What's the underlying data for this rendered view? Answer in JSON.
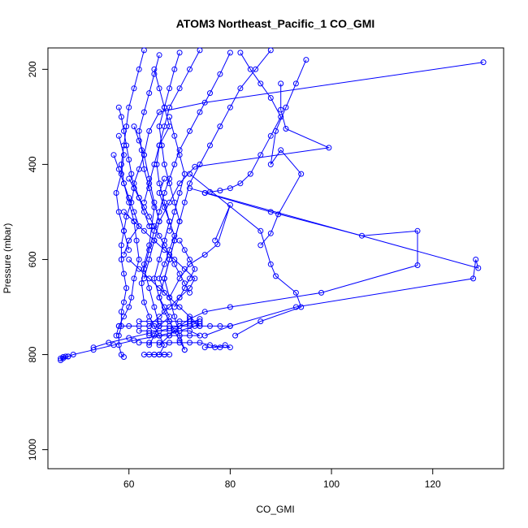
{
  "chart_data": {
    "type": "line",
    "title": "ATOM3 Northeast_Pacific_1 CO_GMI",
    "xlabel": "CO_GMI",
    "ylabel": "Pressure (mbar)",
    "xlim": [
      44,
      134
    ],
    "ylim": [
      1040,
      155
    ],
    "y_reversed": true,
    "x_ticks": [
      60,
      80,
      100,
      120
    ],
    "y_ticks": [
      200,
      400,
      600,
      800,
      1000
    ],
    "grid": false,
    "legend": "none",
    "color": "#0000ff",
    "series": [
      {
        "x": [
          58,
          58.5,
          59,
          59.5,
          60,
          60.5,
          61,
          60.5,
          59.5,
          59,
          58.5,
          58.5,
          59,
          59.5,
          59,
          58.5,
          58.5,
          58,
          58,
          58.5,
          59
        ],
        "y": [
          280,
          300,
          330,
          360,
          390,
          420,
          450,
          480,
          510,
          540,
          570,
          600,
          630,
          660,
          690,
          710,
          740,
          760,
          780,
          800,
          805
        ]
      },
      {
        "x": [
          63,
          62,
          61,
          60,
          59.5,
          59,
          58.5,
          59,
          60,
          61,
          61.5,
          62,
          61,
          60.5,
          60,
          59,
          58,
          57.5
        ],
        "y": [
          160,
          200,
          240,
          280,
          320,
          360,
          400,
          440,
          480,
          520,
          560,
          600,
          640,
          680,
          700,
          720,
          740,
          760
        ]
      },
      {
        "x": [
          66,
          65,
          64,
          63,
          62,
          62.5,
          63,
          64,
          65,
          64.5,
          64,
          63,
          62.5,
          63,
          64,
          65,
          66,
          67,
          66
        ],
        "y": [
          170,
          210,
          250,
          290,
          330,
          370,
          410,
          450,
          490,
          530,
          570,
          610,
          650,
          690,
          720,
          740,
          760,
          780,
          800
        ]
      },
      {
        "x": [
          70,
          69,
          68,
          67,
          66,
          66.5,
          67,
          68,
          69,
          70,
          69,
          68,
          67,
          66,
          67,
          68,
          69,
          70,
          71
        ],
        "y": [
          165,
          200,
          240,
          280,
          320,
          360,
          400,
          440,
          480,
          520,
          560,
          600,
          640,
          680,
          710,
          730,
          750,
          770,
          790
        ]
      },
      {
        "x": [
          74,
          72,
          70,
          68,
          67,
          66,
          65.5,
          66,
          67,
          68,
          67,
          66,
          65,
          66,
          67,
          68,
          66,
          65,
          64
        ],
        "y": [
          160,
          200,
          240,
          280,
          320,
          360,
          400,
          440,
          480,
          520,
          560,
          600,
          640,
          680,
          700,
          720,
          740,
          760,
          780
        ]
      },
      {
        "x": [
          80,
          78,
          76,
          74,
          72,
          70,
          69,
          68,
          67,
          66,
          65,
          64,
          63,
          64,
          65,
          66
        ],
        "y": [
          165,
          210,
          250,
          290,
          330,
          370,
          400,
          430,
          460,
          500,
          540,
          580,
          620,
          660,
          700,
          740
        ]
      },
      {
        "x": [
          88,
          85,
          82,
          80,
          78,
          76,
          74,
          72,
          71,
          70,
          69,
          68,
          67,
          68,
          69,
          70,
          71
        ],
        "y": [
          160,
          200,
          240,
          280,
          320,
          360,
          400,
          440,
          480,
          520,
          560,
          600,
          640,
          680,
          720,
          760,
          790
        ]
      },
      {
        "x": [
          130,
          75,
          66,
          64,
          63,
          64,
          65,
          66,
          65,
          64,
          63
        ],
        "y": [
          185,
          270,
          290,
          330,
          380,
          430,
          480,
          520,
          560,
          600,
          640
        ]
      },
      {
        "x": [
          90,
          90,
          91,
          99.5,
          73,
          70,
          68,
          66
        ],
        "y": [
          230,
          285,
          325,
          365,
          405,
          440,
          480,
          520
        ]
      },
      {
        "x": [
          95,
          93,
          91,
          89,
          88,
          90,
          94,
          89.5,
          88,
          86
        ],
        "y": [
          180,
          230,
          280,
          330,
          400,
          370,
          420,
          505,
          545,
          570
        ]
      },
      {
        "x": [
          82,
          84,
          86,
          88,
          90,
          88,
          86,
          84,
          82,
          80,
          78,
          76,
          75
        ],
        "y": [
          165,
          200,
          230,
          260,
          300,
          340,
          380,
          420,
          440,
          450,
          455,
          458,
          460
        ]
      },
      {
        "x": [
          75,
          88,
          106,
          117,
          117,
          98,
          80,
          75,
          72,
          70,
          68,
          66
        ],
        "y": [
          460,
          500,
          550,
          540,
          612,
          670,
          700,
          710,
          725,
          740,
          760,
          780
        ]
      },
      {
        "x": [
          72,
          129,
          128.5,
          128,
          93,
          80,
          75
        ],
        "y": [
          450,
          618,
          600,
          640,
          700,
          740,
          760
        ]
      },
      {
        "x": [
          72,
          86,
          88,
          89,
          93,
          94,
          86,
          81
        ],
        "y": [
          420,
          540,
          610,
          635,
          670,
          700,
          730,
          760
        ]
      },
      {
        "x": [
          77,
          80,
          77.5,
          75,
          72,
          70,
          68
        ],
        "y": [
          560,
          485,
          568,
          590,
          610,
          640,
          680
        ]
      },
      {
        "x": [
          60,
          62,
          64,
          66,
          68,
          70,
          72,
          74
        ],
        "y": [
          600,
          620,
          640,
          660,
          680,
          700,
          720,
          740
        ]
      },
      {
        "x": [
          59,
          61,
          63,
          65,
          67,
          69,
          71,
          73,
          72,
          70,
          68,
          66,
          64
        ],
        "y": [
          500,
          520,
          540,
          560,
          580,
          600,
          620,
          640,
          660,
          680,
          700,
          720,
          740
        ]
      },
      {
        "x": [
          58,
          60,
          62,
          64,
          66,
          68,
          70,
          72,
          74,
          76,
          78,
          80
        ],
        "y": [
          740,
          740,
          740,
          740,
          740,
          740,
          740,
          740,
          740,
          740,
          740,
          740
        ]
      },
      {
        "x": [
          62,
          64,
          66,
          68,
          70,
          72,
          74,
          76,
          78,
          80,
          79,
          77,
          75
        ],
        "y": [
          775,
          775,
          775,
          775,
          775,
          775,
          775,
          780,
          785,
          785,
          780,
          785,
          785
        ]
      },
      {
        "x": [
          64,
          66,
          68,
          70,
          72,
          74,
          72,
          70,
          68,
          66,
          64,
          62
        ],
        "y": [
          760,
          760,
          760,
          760,
          760,
          760,
          750,
          750,
          750,
          750,
          750,
          750
        ]
      },
      {
        "x": [
          62,
          64,
          66,
          68,
          70,
          72,
          74
        ],
        "y": [
          730,
          730,
          730,
          730,
          730,
          730,
          730
        ]
      },
      {
        "x": [
          63,
          64,
          65,
          66,
          67,
          68,
          67,
          66,
          65
        ],
        "y": [
          800,
          800,
          800,
          800,
          800,
          800,
          800,
          800,
          800
        ]
      },
      {
        "x": [
          46.5,
          47,
          48,
          49,
          53,
          57,
          61,
          66,
          70,
          73,
          74,
          72
        ],
        "y": [
          812,
          808,
          804,
          800,
          790,
          780,
          770,
          760,
          750,
          740,
          735,
          730
        ]
      },
      {
        "x": [
          46.5,
          47,
          47.5,
          48
        ],
        "y": [
          808,
          805,
          804,
          804
        ]
      },
      {
        "x": [
          53,
          56,
          60,
          64,
          68,
          72,
          74
        ],
        "y": [
          785,
          775,
          765,
          755,
          745,
          735,
          725
        ]
      },
      {
        "x": [
          58,
          59,
          58.5,
          57.5,
          58,
          59,
          60
        ],
        "y": [
          340,
          380,
          420,
          460,
          500,
          540,
          580
        ]
      },
      {
        "x": [
          57,
          58,
          59,
          60,
          61,
          62,
          60,
          59
        ],
        "y": [
          380,
          410,
          440,
          470,
          500,
          530,
          560,
          590
        ]
      },
      {
        "x": [
          65,
          66,
          67,
          68,
          66,
          65,
          64,
          63
        ],
        "y": [
          200,
          240,
          280,
          320,
          360,
          400,
          440,
          480
        ]
      },
      {
        "x": [
          68,
          69,
          70,
          71,
          70,
          69,
          68
        ],
        "y": [
          300,
          340,
          380,
          420,
          460,
          500,
          540
        ]
      },
      {
        "x": [
          60,
          61,
          62,
          63,
          64,
          65,
          66,
          67,
          68,
          69,
          70,
          71,
          72
        ],
        "y": [
          430,
          450,
          470,
          490,
          510,
          530,
          550,
          570,
          590,
          610,
          630,
          650,
          670
        ]
      },
      {
        "x": [
          70,
          71,
          72,
          73,
          72,
          71,
          70,
          69
        ],
        "y": [
          560,
          580,
          600,
          620,
          640,
          660,
          680,
          700
        ]
      },
      {
        "x": [
          61,
          62,
          63,
          62,
          61,
          62,
          63,
          64
        ],
        "y": [
          320,
          350,
          380,
          410,
          440,
          470,
          500,
          530
        ]
      },
      {
        "x": [
          67,
          66,
          67,
          68,
          69,
          68,
          67,
          66,
          67
        ],
        "y": [
          430,
          460,
          490,
          520,
          550,
          580,
          610,
          640,
          670
        ]
      }
    ]
  }
}
